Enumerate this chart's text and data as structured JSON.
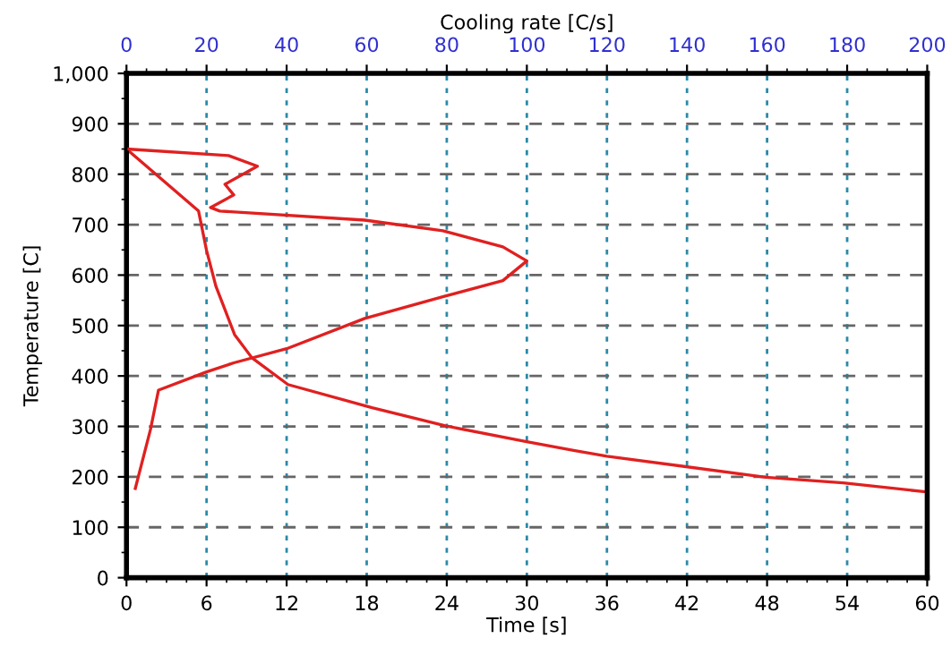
{
  "chart_data": {
    "type": "line",
    "xlabel": "Time [s]",
    "ylabel": "Temperature [C]",
    "x2label": "Cooling rate [C/s]",
    "xlim": [
      0,
      60
    ],
    "xticks": [
      0,
      6,
      12,
      18,
      24,
      30,
      36,
      42,
      48,
      54,
      60
    ],
    "x2lim": [
      0,
      200
    ],
    "x2ticks": [
      0,
      20,
      40,
      60,
      80,
      100,
      120,
      140,
      160,
      180,
      200
    ],
    "ylim": [
      0,
      1000
    ],
    "yticks": [
      0,
      100,
      200,
      300,
      400,
      500,
      600,
      700,
      800,
      900,
      {
        "value": 1000,
        "label": "1,000"
      }
    ],
    "grid": true,
    "legend": false,
    "marker": "none",
    "line_style": "solid",
    "series": [
      {
        "color": "#e02020",
        "x": [
          0,
          5.4,
          6.0,
          6.7,
          8.1,
          9.4,
          12.1,
          18.4,
          23.9,
          29.9,
          33.6,
          36.0,
          47.9,
          53.7,
          60
        ],
        "values": [
          850,
          727,
          649,
          578,
          482,
          436,
          383,
          337,
          301,
          270,
          252,
          241,
          199,
          188,
          170
        ]
      },
      {
        "color": "#e02020",
        "axis": "x2",
        "x": [
          0,
          25.5,
          32.7,
          24.6,
          26.8,
          21,
          23.3,
          59.5,
          79,
          94,
          100,
          94,
          79,
          59.5,
          40,
          26.8,
          20,
          8,
          6,
          2.2
        ],
        "values": [
          850,
          837,
          816,
          780,
          759,
          734,
          727,
          709,
          688,
          656,
          628,
          589,
          557,
          514,
          454,
          426,
          408,
          372,
          294,
          177
        ]
      }
    ]
  }
}
